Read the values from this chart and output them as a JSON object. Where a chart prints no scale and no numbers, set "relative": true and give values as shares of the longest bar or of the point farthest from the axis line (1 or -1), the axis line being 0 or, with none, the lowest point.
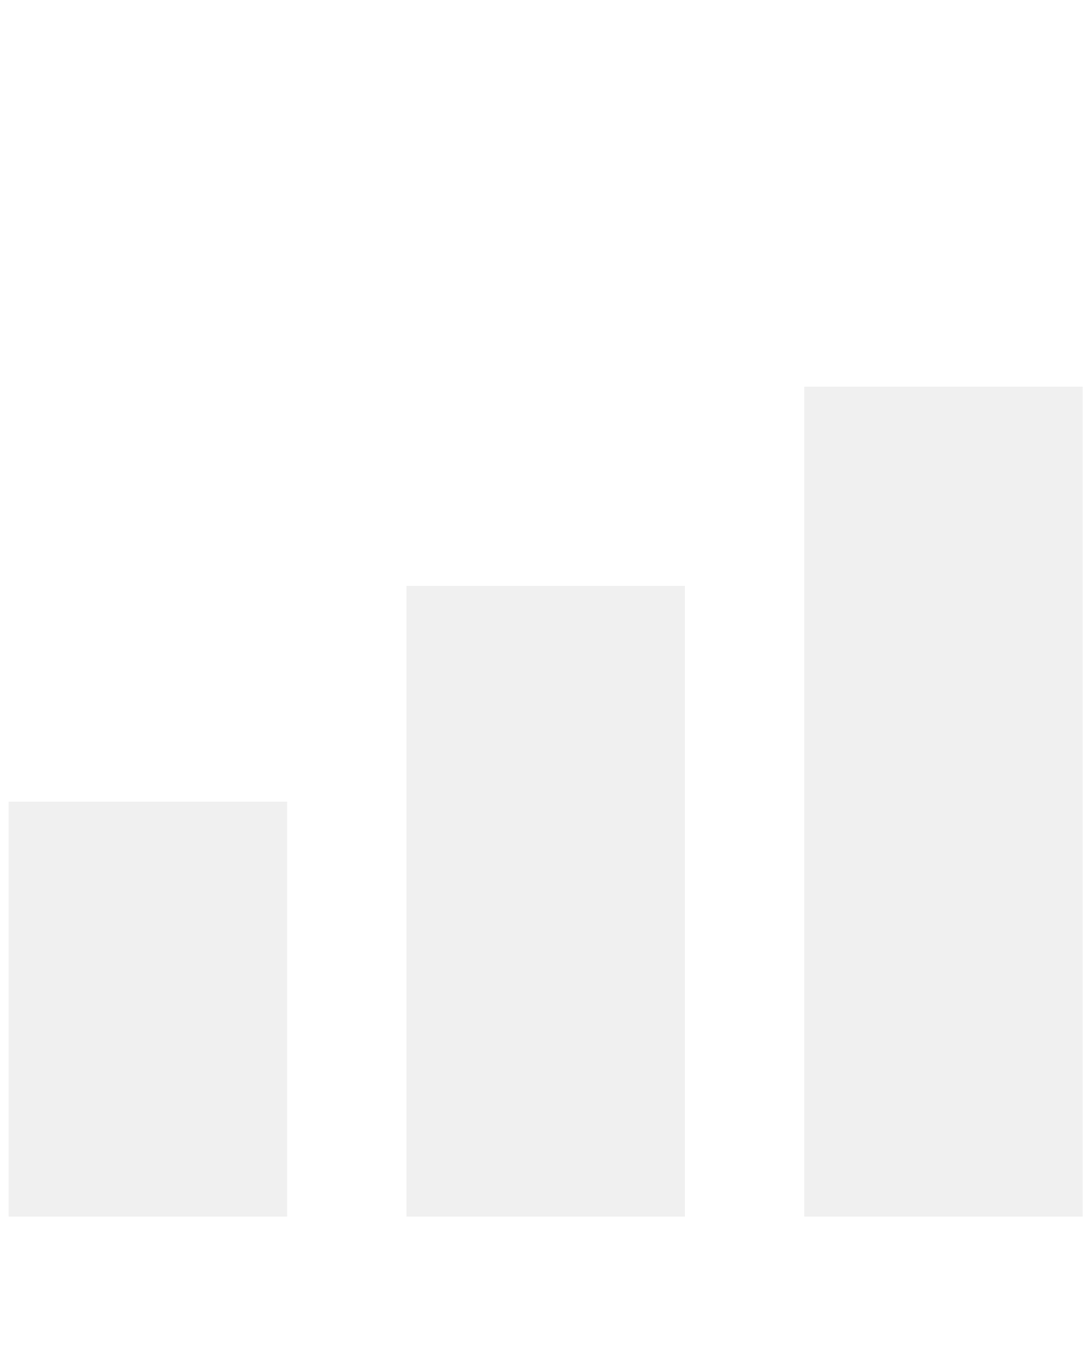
{
  "chart_data": {
    "type": "bar",
    "relative": true,
    "categories": [
      null,
      null,
      null
    ],
    "values": [
      0.5,
      0.76,
      1
    ],
    "color": "#f0f0f0",
    "grid": false
  }
}
